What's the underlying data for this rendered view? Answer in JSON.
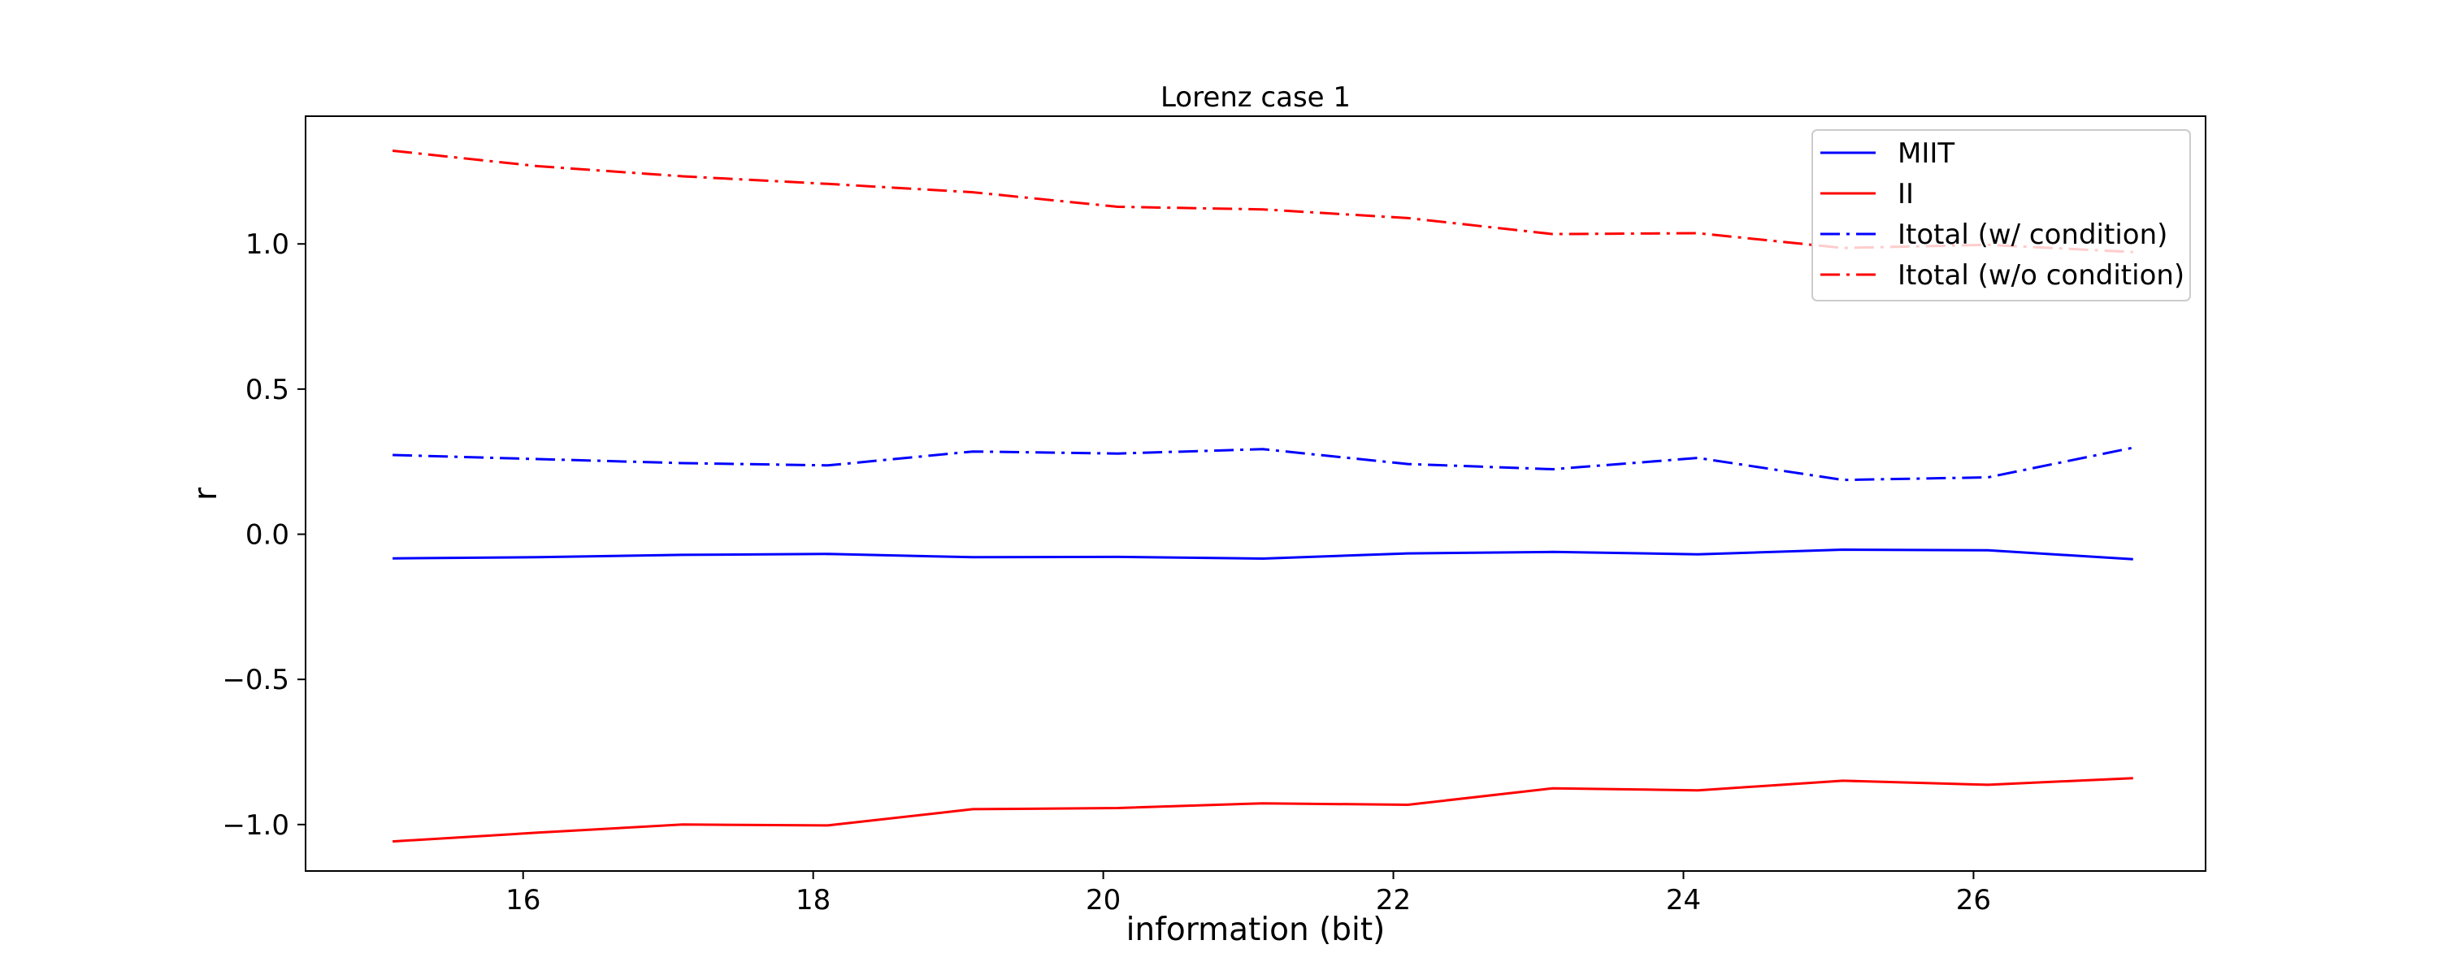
{
  "chart_data": {
    "type": "line",
    "title": "Lorenz case 1",
    "xlabel": "information (bit)",
    "ylabel": "r",
    "xlim": [
      14.5,
      27.6
    ],
    "ylim": [
      -1.16,
      1.44
    ],
    "xticks": [
      16,
      18,
      20,
      22,
      24,
      26
    ],
    "xtick_labels": [
      "16",
      "18",
      "20",
      "22",
      "24",
      "26"
    ],
    "yticks": [
      -1.0,
      -0.5,
      0.0,
      0.5,
      1.0
    ],
    "ytick_labels": [
      "−1.0",
      "−0.5",
      "0.0",
      "0.5",
      "1.0"
    ],
    "grid": false,
    "legend_position": "top-right",
    "x": [
      15.1,
      16.1,
      17.1,
      18.1,
      19.1,
      20.1,
      21.1,
      22.1,
      23.1,
      24.1,
      25.1,
      26.1,
      27.1
    ],
    "series": [
      {
        "name": "MIIT",
        "color": "#0000ff",
        "style": "solid",
        "values": [
          -0.083,
          -0.079,
          -0.071,
          -0.068,
          -0.079,
          -0.078,
          -0.084,
          -0.066,
          -0.061,
          -0.069,
          -0.053,
          -0.055,
          -0.086
        ]
      },
      {
        "name": "II",
        "color": "#ff0000",
        "style": "solid",
        "values": [
          -1.058,
          -1.028,
          -1.0,
          -1.003,
          -0.947,
          -0.943,
          -0.927,
          -0.932,
          -0.875,
          -0.882,
          -0.849,
          -0.863,
          -0.84
        ]
      },
      {
        "name": "Itotal (w/ condition)",
        "color": "#0000ff",
        "style": "dashdot",
        "values": [
          0.273,
          0.259,
          0.245,
          0.237,
          0.285,
          0.278,
          0.293,
          0.242,
          0.224,
          0.263,
          0.187,
          0.196,
          0.298
        ]
      },
      {
        "name": "Itotal (w/o condition)",
        "color": "#ff0000",
        "style": "dashdot",
        "values": [
          1.321,
          1.268,
          1.233,
          1.207,
          1.178,
          1.128,
          1.119,
          1.089,
          1.034,
          1.037,
          0.986,
          0.997,
          0.972
        ]
      }
    ]
  }
}
